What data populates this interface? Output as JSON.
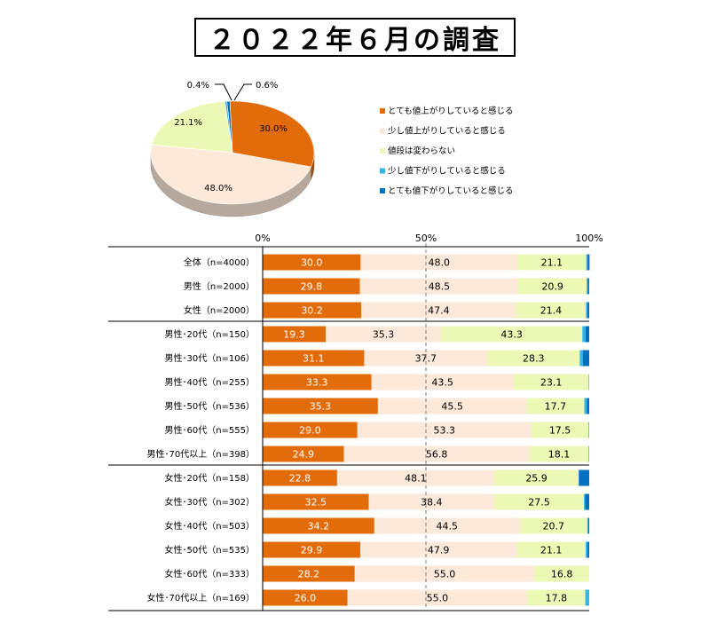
{
  "title": "２０２２年６月の調査",
  "colors": {
    "s1": "#E36C0A",
    "s2": "#FDE9D9",
    "s3": "#EBF9B5",
    "s4": "#33B5E5",
    "s5": "#0070C0"
  },
  "chart_data": [
    {
      "type": "pie",
      "legend_position": "right",
      "slices": [
        {
          "name": "とても値上がりしていると感じる",
          "value": 30.0,
          "label": "30.0%"
        },
        {
          "name": "少し値上がりしていると感じる",
          "value": 48.0,
          "label": "48.0%"
        },
        {
          "name": "値段は変わらない",
          "value": 21.1,
          "label": "21.1%"
        },
        {
          "name": "少し値下がりしていると感じる",
          "value": 0.4,
          "label": "0.4%"
        },
        {
          "name": "とても値下がりしていると感じる",
          "value": 0.6,
          "label": "0.6%"
        }
      ]
    },
    {
      "type": "bar",
      "orientation": "horizontal",
      "stacked": true,
      "xlim": [
        0,
        100
      ],
      "axis_ticks": [
        "0%",
        "50%",
        "100%"
      ],
      "grid": false,
      "categories": [
        "全体（n=4000）",
        "男性（n=2000）",
        "女性（n=2000）",
        "男性･20代（n=150）",
        "男性･30代（n=106）",
        "男性･40代（n=255）",
        "男性･50代（n=536）",
        "男性･60代（n=555）",
        "男性･70代以上（n=398）",
        "女性･20代（n=158）",
        "女性･30代（n=302）",
        "女性･40代（n=503）",
        "女性･50代（n=535）",
        "女性･60代（n=333）",
        "女性･70代以上（n=169）"
      ],
      "series": [
        {
          "name": "とても値上がりしていると感じる",
          "values": [
            30.0,
            29.8,
            30.2,
            19.3,
            31.1,
            33.3,
            35.3,
            29.0,
            24.9,
            22.8,
            32.5,
            34.2,
            29.9,
            28.2,
            26.0
          ],
          "labels": [
            "30.0",
            "29.8",
            "30.2",
            "19.3",
            "31.1",
            "33.3",
            "35.3",
            "29.0",
            "24.9",
            "22.8",
            "32.5",
            "34.2",
            "29.9",
            "28.2",
            "26.0"
          ]
        },
        {
          "name": "少し値上がりしていると感じる",
          "values": [
            48.0,
            48.5,
            47.4,
            35.3,
            37.7,
            43.5,
            45.5,
            53.3,
            56.8,
            48.1,
            38.4,
            44.5,
            47.9,
            55.0,
            55.0
          ],
          "labels": [
            "48.0",
            "48.5",
            "47.4",
            "35.3",
            "37.7",
            "43.5",
            "45.5",
            "53.3",
            "56.8",
            "48.1",
            "38.4",
            "44.5",
            "47.9",
            "55.0",
            "55.0"
          ]
        },
        {
          "name": "値段は変わらない",
          "values": [
            21.1,
            20.9,
            21.4,
            43.3,
            28.3,
            23.1,
            17.7,
            17.5,
            18.1,
            25.9,
            27.5,
            20.7,
            21.1,
            16.8,
            17.8
          ],
          "labels": [
            "21.1",
            "20.9",
            "21.4",
            "43.3",
            "28.3",
            "23.1",
            "17.7",
            "17.5",
            "18.1",
            "25.9",
            "27.5",
            "20.7",
            "21.1",
            "16.8",
            "17.8"
          ]
        },
        {
          "name": "少し値下がりしていると感じる",
          "values": [
            0.4,
            0.4,
            0.4,
            1.0,
            1.0,
            0.0,
            0.8,
            0.2,
            0.2,
            0.0,
            0.3,
            0.3,
            0.5,
            0.0,
            1.2
          ]
        },
        {
          "name": "とても値下がりしていると感じる",
          "values": [
            0.6,
            0.4,
            0.6,
            1.1,
            1.9,
            0.1,
            0.7,
            0.0,
            0.0,
            3.2,
            1.3,
            0.3,
            0.6,
            0.0,
            0.0
          ]
        }
      ],
      "group_breaks_after": [
        2,
        8
      ]
    }
  ]
}
